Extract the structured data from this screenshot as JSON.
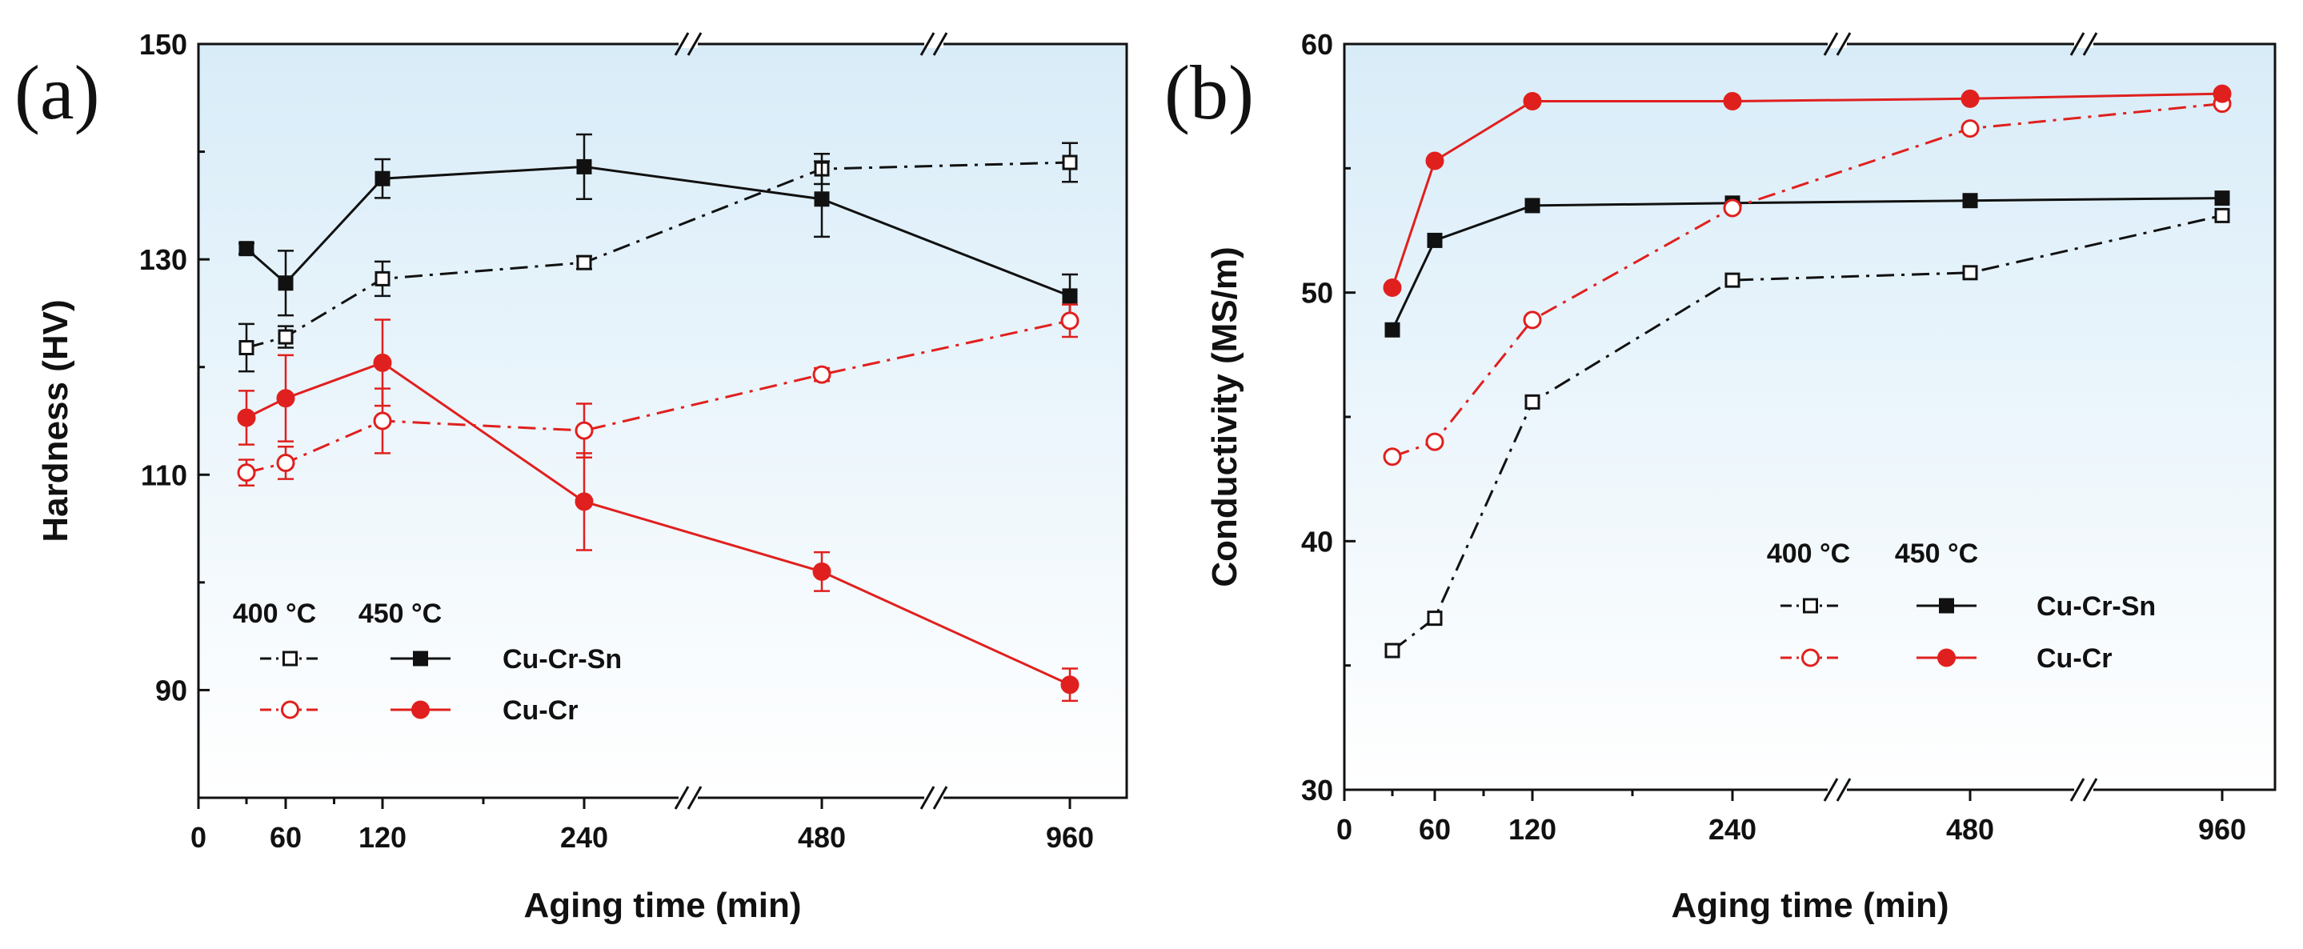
{
  "chart_data": [
    {
      "type": "line",
      "panel_label": "(a)",
      "title": "",
      "xlabel": "Aging time (min)",
      "ylabel": "Hardness (HV)",
      "x_ticks": [
        0,
        60,
        120,
        240,
        480,
        960
      ],
      "x_axis_breaks": [
        "between 240 and 480",
        "between 480 and 960"
      ],
      "y_ticks": [
        90,
        110,
        130,
        150
      ],
      "ylim": [
        80,
        150
      ],
      "legend": {
        "temp_headers": [
          "400 °C",
          "450 °C"
        ],
        "alloys": [
          "Cu-Cr-Sn",
          "Cu-Cr"
        ],
        "position": "bottom-left"
      },
      "series": [
        {
          "name": "Cu-Cr-Sn 400 °C",
          "alloy": "Cu-Cr-Sn",
          "temperature": "400 °C",
          "color": "#111111",
          "marker": "square-open",
          "line": "dash-dot",
          "x": [
            30,
            60,
            120,
            240,
            480,
            960
          ],
          "values": [
            121.8,
            122.8,
            128.2,
            129.7,
            138.4,
            139.0
          ],
          "errors": [
            2.2,
            1.0,
            1.6,
            0.6,
            1.4,
            1.8
          ]
        },
        {
          "name": "Cu-Cr-Sn 450 °C",
          "alloy": "Cu-Cr-Sn",
          "temperature": "450 °C",
          "color": "#111111",
          "marker": "square-filled",
          "line": "solid",
          "x": [
            30,
            60,
            120,
            240,
            480,
            960
          ],
          "values": [
            131.0,
            127.8,
            137.5,
            138.6,
            135.6,
            126.6
          ],
          "errors": [
            0.5,
            3.0,
            1.8,
            3.0,
            3.5,
            2.0
          ]
        },
        {
          "name": "Cu-Cr 400 °C",
          "alloy": "Cu-Cr",
          "temperature": "400 °C",
          "color": "#e0201e",
          "marker": "circle-open",
          "line": "dash-dot",
          "x": [
            30,
            60,
            120,
            240,
            480,
            960
          ],
          "values": [
            110.2,
            111.1,
            115.0,
            114.1,
            119.3,
            124.3
          ],
          "errors": [
            1.2,
            1.5,
            3.0,
            2.5,
            0.6,
            1.5
          ]
        },
        {
          "name": "Cu-Cr 450 °C",
          "alloy": "Cu-Cr",
          "temperature": "450 °C",
          "color": "#e0201e",
          "marker": "circle-filled",
          "line": "solid",
          "x": [
            30,
            60,
            120,
            240,
            480,
            960
          ],
          "values": [
            115.3,
            117.1,
            120.4,
            107.5,
            101.0,
            90.5
          ],
          "errors": [
            2.5,
            4.0,
            4.0,
            4.5,
            1.8,
            1.5
          ]
        }
      ]
    },
    {
      "type": "line",
      "panel_label": "(b)",
      "title": "",
      "xlabel": "Aging time (min)",
      "ylabel": "Conductivity (MS/m)",
      "x_ticks": [
        0,
        60,
        120,
        240,
        480,
        960
      ],
      "x_axis_breaks": [
        "between 240 and 480",
        "between 480 and 960"
      ],
      "y_ticks": [
        30,
        40,
        50,
        60
      ],
      "ylim": [
        30,
        60
      ],
      "legend": {
        "temp_headers": [
          "400 °C",
          "450 °C"
        ],
        "alloys": [
          "Cu-Cr-Sn",
          "Cu-Cr"
        ],
        "position": "center-right"
      },
      "series": [
        {
          "name": "Cu-Cr-Sn 400 °C",
          "alloy": "Cu-Cr-Sn",
          "temperature": "400 °C",
          "color": "#111111",
          "marker": "square-open",
          "line": "dash-dot",
          "x": [
            30,
            60,
            120,
            240,
            480,
            960
          ],
          "values": [
            35.6,
            36.9,
            45.6,
            50.5,
            50.8,
            53.1
          ]
        },
        {
          "name": "Cu-Cr-Sn 450 °C",
          "alloy": "Cu-Cr-Sn",
          "temperature": "450 °C",
          "color": "#111111",
          "marker": "square-filled",
          "line": "solid",
          "x": [
            30,
            60,
            120,
            240,
            480,
            960
          ],
          "values": [
            48.5,
            52.1,
            53.5,
            53.6,
            53.7,
            53.8
          ]
        },
        {
          "name": "Cu-Cr 400 °C",
          "alloy": "Cu-Cr",
          "temperature": "400 °C",
          "color": "#e0201e",
          "marker": "circle-open",
          "line": "dash-dot",
          "x": [
            30,
            60,
            120,
            240,
            480,
            960
          ],
          "values": [
            43.4,
            44.0,
            48.9,
            53.4,
            56.6,
            57.6
          ]
        },
        {
          "name": "Cu-Cr 450 °C",
          "alloy": "Cu-Cr",
          "temperature": "450 °C",
          "color": "#e0201e",
          "marker": "circle-filled",
          "line": "solid",
          "x": [
            30,
            60,
            120,
            240,
            480,
            960
          ],
          "values": [
            50.2,
            55.3,
            57.7,
            57.7,
            57.8,
            58.0
          ]
        }
      ]
    }
  ]
}
